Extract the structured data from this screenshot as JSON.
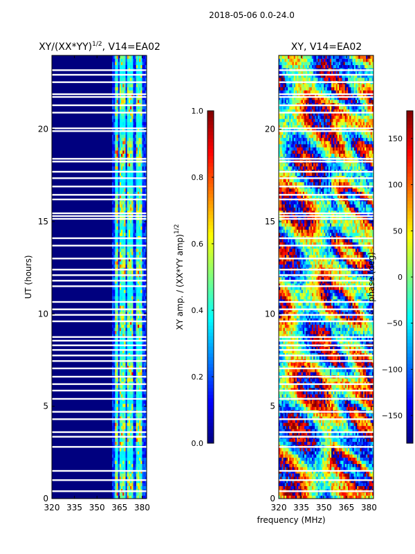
{
  "figure": {
    "suptitle": "2018-05-06 0.0-24.0",
    "xlabel": "frequency (MHz)",
    "ylabel": "UT (hours)"
  },
  "colors": {
    "jet": [
      "#00007f",
      "#0000ff",
      "#007fff",
      "#00ffff",
      "#7fff7f",
      "#ffff00",
      "#ff7f00",
      "#ff0000",
      "#7f0000"
    ],
    "gap": "#ffffff"
  },
  "chart_data": [
    {
      "type": "heatmap",
      "title_main": "XY/(XX*YY)",
      "title_sup": "1/2",
      "title_tail": ", V14=EA02",
      "xlim": [
        320,
        383
      ],
      "ylim": [
        0,
        24
      ],
      "xticks": [
        "320",
        "335",
        "350",
        "365",
        "380"
      ],
      "xtick_values": [
        320,
        335,
        350,
        365,
        380
      ],
      "yticks": [
        "0",
        "5",
        "10",
        "15",
        "20"
      ],
      "ytick_values": [
        0,
        5,
        10,
        15,
        20
      ],
      "band_columns_mhz": [
        362,
        363,
        365,
        366,
        367,
        368,
        370,
        371,
        372,
        373,
        376,
        377,
        378,
        379
      ],
      "colorbar": {
        "label_main": "XY amp. / (XX*YY amp)",
        "label_sup": "1/2",
        "range": [
          0.0,
          1.0
        ],
        "ticks": [
          "0.0",
          "0.2",
          "0.4",
          "0.6",
          "0.8",
          "1.0"
        ],
        "tick_values": [
          0.0,
          0.2,
          0.4,
          0.6,
          0.8,
          1.0
        ]
      }
    },
    {
      "type": "heatmap",
      "title": "XY, V14=EA02",
      "xlim": [
        320,
        383
      ],
      "ylim": [
        0,
        24
      ],
      "xticks": [
        "320",
        "335",
        "350",
        "365",
        "380"
      ],
      "xtick_values": [
        320,
        335,
        350,
        365,
        380
      ],
      "yticks": [
        "0",
        "5",
        "10",
        "15",
        "20"
      ],
      "ytick_values": [
        0,
        5,
        10,
        15,
        20
      ],
      "colorbar": {
        "label": "phase (deg)",
        "range": [
          -180,
          180
        ],
        "ticks": [
          "−150",
          "−100",
          "−50",
          "0",
          "50",
          "100",
          "150"
        ],
        "tick_values": [
          -150,
          -100,
          -50,
          0,
          50,
          100,
          150
        ]
      }
    }
  ],
  "gap_hours": [
    0.4,
    1.0,
    1.5,
    2.8,
    3.35,
    3.6,
    4.3,
    4.7,
    5.4,
    5.85,
    6.2,
    6.6,
    7.05,
    7.45,
    7.75,
    8.05,
    8.3,
    8.55,
    8.75,
    9.6,
    9.95,
    10.25,
    10.65,
    11.5,
    11.8,
    12.1,
    12.4,
    13.0,
    13.7,
    14.1,
    15.15,
    15.3,
    15.45,
    16.2,
    16.45,
    16.9,
    17.35,
    17.7,
    18.25,
    18.4,
    19.9,
    20.05,
    20.9,
    21.3,
    21.75,
    21.9,
    22.55,
    22.95,
    23.2
  ]
}
